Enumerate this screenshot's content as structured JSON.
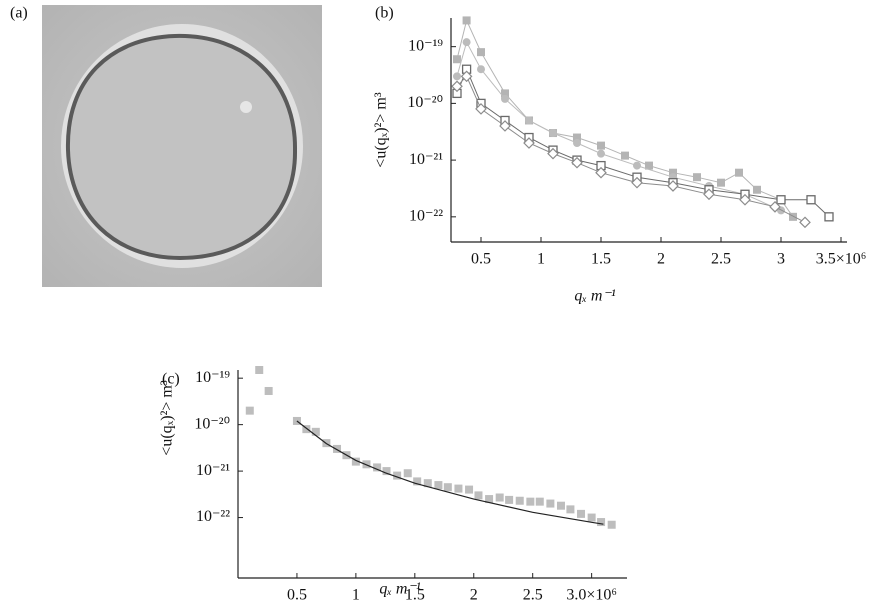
{
  "image_panel": {
    "label": "(a)"
  },
  "chart_data": [
    {
      "type": "line",
      "label": "(b)",
      "y_label": "<u(qₓ)²> m³",
      "x_label": "qₓ m⁻¹",
      "ylog": true,
      "ylim": [
        3.6e-23,
        3.2e-19
      ],
      "xlim": [
        0.25,
        3.55
      ],
      "yticks": [
        {
          "value": 1e-19,
          "label": "10⁻¹⁹"
        },
        {
          "value": 1e-20,
          "label": "10⁻²⁰"
        },
        {
          "value": 1e-21,
          "label": "10⁻²¹"
        },
        {
          "value": 1e-22,
          "label": "10⁻²²"
        }
      ],
      "xticks": [
        0.5,
        1.0,
        1.5,
        2.0,
        2.5,
        3.0,
        {
          "value": 3.5,
          "label": "3.5×10⁶"
        }
      ],
      "series": [
        {
          "color": "#b4b4b4",
          "marker": "square",
          "connect": true,
          "x": [
            0.3,
            0.38,
            0.5,
            0.7,
            0.9,
            1.1,
            1.3,
            1.5,
            1.7,
            1.9,
            2.1,
            2.3,
            2.5,
            2.65,
            2.8,
            3.0,
            3.1
          ],
          "values": [
            6e-20,
            2.9e-19,
            8e-20,
            1.5e-20,
            5e-21,
            3e-21,
            2.5e-21,
            1.8e-21,
            1.2e-21,
            8e-22,
            6e-22,
            5e-22,
            4e-22,
            6e-22,
            3e-22,
            2e-22,
            1e-22
          ]
        },
        {
          "color": "#bcbcbc",
          "marker": "circle",
          "connect": true,
          "x": [
            0.3,
            0.38,
            0.5,
            0.7,
            0.9,
            1.1,
            1.3,
            1.5,
            1.8,
            2.1,
            2.4,
            2.7,
            3.0
          ],
          "values": [
            3e-20,
            1.2e-19,
            4e-20,
            1.2e-20,
            5e-21,
            3e-21,
            2e-21,
            1.3e-21,
            8e-22,
            5e-22,
            3.5e-22,
            2.5e-22,
            1.3e-22
          ]
        },
        {
          "color": "#6a6a6a",
          "marker": "open-square",
          "connect": true,
          "x": [
            0.3,
            0.38,
            0.5,
            0.7,
            0.9,
            1.1,
            1.3,
            1.5,
            1.8,
            2.1,
            2.4,
            2.7,
            3.0,
            3.25,
            3.4
          ],
          "values": [
            1.5e-20,
            4e-20,
            1e-20,
            5e-21,
            2.5e-21,
            1.5e-21,
            1e-21,
            8e-22,
            5e-22,
            4e-22,
            3e-22,
            2.5e-22,
            2e-22,
            2e-22,
            1e-22
          ]
        },
        {
          "color": "#8c8c8c",
          "marker": "open-diamond",
          "connect": true,
          "x": [
            0.3,
            0.38,
            0.5,
            0.7,
            0.9,
            1.1,
            1.3,
            1.5,
            1.8,
            2.1,
            2.4,
            2.7,
            2.95,
            3.2
          ],
          "values": [
            2e-20,
            3e-20,
            8e-21,
            4e-21,
            2e-21,
            1.3e-21,
            9e-22,
            6e-22,
            4e-22,
            3.5e-22,
            2.5e-22,
            2e-22,
            1.5e-22,
            8e-23
          ]
        }
      ]
    },
    {
      "type": "scatter",
      "label": "(c)",
      "y_label": "<u(qₓ)²> m³",
      "x_label": "qₓ m⁻¹",
      "ylog": true,
      "ylim": [
        5e-24,
        1.5e-19
      ],
      "xlim": [
        0,
        3.3
      ],
      "yticks": [
        {
          "value": 1e-19,
          "label": "10⁻¹⁹"
        },
        {
          "value": 1e-20,
          "label": "10⁻²⁰"
        },
        {
          "value": 1e-21,
          "label": "10⁻²¹"
        },
        {
          "value": 1e-22,
          "label": "10⁻²²"
        }
      ],
      "xticks": [
        0.5,
        1.0,
        1.5,
        2.0,
        2.5,
        {
          "value": 3.0,
          "label": "3.0×10⁶"
        }
      ],
      "series": [
        {
          "color": "#bdbdbd",
          "marker": "square",
          "connect": false,
          "x": [
            0.1,
            0.18,
            0.26,
            0.5,
            0.58,
            0.66,
            0.75,
            0.84,
            0.92,
            1.0,
            1.09,
            1.18,
            1.26,
            1.35,
            1.44,
            1.52,
            1.61,
            1.7,
            1.78,
            1.87,
            1.96,
            2.04,
            2.13,
            2.22,
            2.3,
            2.39,
            2.48,
            2.56,
            2.65,
            2.74,
            2.82,
            2.91,
            3.0,
            3.08,
            3.17
          ],
          "values": [
            2e-20,
            1.5e-19,
            5.3e-20,
            1.2e-20,
            8e-21,
            7e-21,
            4e-21,
            3e-21,
            2.2e-21,
            1.6e-21,
            1.4e-21,
            1.2e-21,
            1e-21,
            8e-22,
            9e-22,
            6e-22,
            5.5e-22,
            5e-22,
            4.5e-22,
            4.2e-22,
            4e-22,
            3e-22,
            2.5e-22,
            2.7e-22,
            2.4e-22,
            2.3e-22,
            2.2e-22,
            2.2e-22,
            2e-22,
            1.8e-22,
            1.5e-22,
            1.2e-22,
            1e-22,
            8e-23,
            7e-23
          ]
        },
        {
          "color": "#222222",
          "connect": true,
          "x": [
            0.5,
            0.75,
            1.0,
            1.25,
            1.5,
            2.0,
            2.5,
            3.0,
            3.1
          ],
          "values": [
            1.2e-20,
            3.9e-21,
            1.7e-21,
            9.2e-22,
            5.5e-22,
            2.5e-22,
            1.3e-22,
            7.9e-23,
            7.2e-23
          ]
        }
      ]
    }
  ]
}
